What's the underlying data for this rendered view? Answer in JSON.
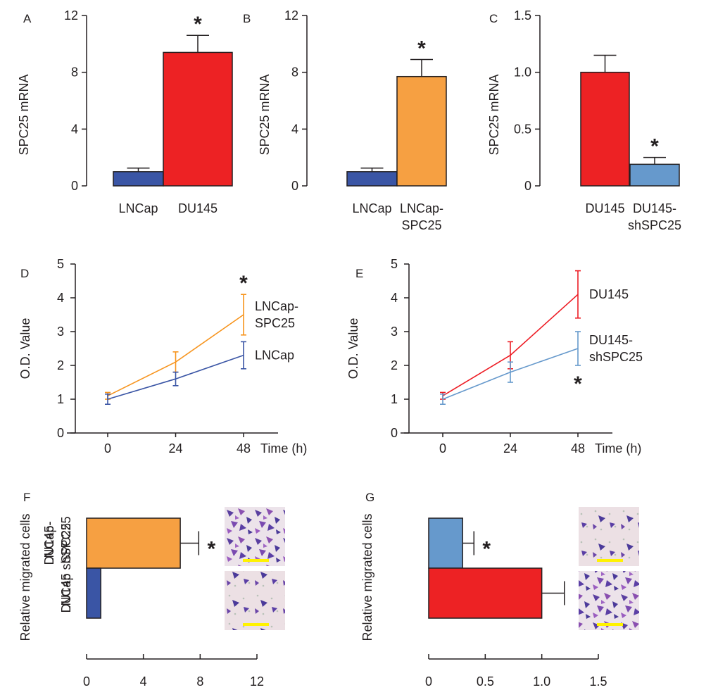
{
  "chart_data": [
    {
      "panel": "A",
      "type": "bar",
      "orientation": "vertical",
      "ylabel": "SPC25 mRNA",
      "ylim": [
        0,
        12
      ],
      "yticks": [
        "0",
        "4",
        "8",
        "12"
      ],
      "ytick_values": [
        0,
        4,
        8,
        12
      ],
      "categories": [
        [
          "LNCap"
        ],
        [
          "DU145"
        ]
      ],
      "values": [
        1.0,
        9.4
      ],
      "errors": [
        0.25,
        1.2
      ],
      "colors": [
        "#3a55a5",
        "#ed2224"
      ],
      "significance": [
        "",
        "*"
      ]
    },
    {
      "panel": "B",
      "type": "bar",
      "orientation": "vertical",
      "ylabel": "SPC25 mRNA",
      "ylim": [
        0,
        12
      ],
      "yticks": [
        "0",
        "4",
        "8",
        "12"
      ],
      "ytick_values": [
        0,
        4,
        8,
        12
      ],
      "categories": [
        [
          "LNCap"
        ],
        [
          "LNCap-",
          "SPC25"
        ]
      ],
      "values": [
        1.0,
        7.7
      ],
      "errors": [
        0.25,
        1.2
      ],
      "colors": [
        "#3a55a5",
        "#f6a042"
      ],
      "significance": [
        "",
        "*"
      ]
    },
    {
      "panel": "C",
      "type": "bar",
      "orientation": "vertical",
      "ylabel": "SPC25 mRNA",
      "ylim": [
        0,
        1.5
      ],
      "yticks": [
        "0",
        "0.5",
        "1.0",
        "1.5"
      ],
      "ytick_values": [
        0,
        0.5,
        1.0,
        1.5
      ],
      "categories": [
        [
          "DU145"
        ],
        [
          "DU145-",
          "shSPC25"
        ]
      ],
      "values": [
        1.0,
        0.19
      ],
      "errors": [
        0.15,
        0.06
      ],
      "colors": [
        "#ed2224",
        "#6699cc"
      ],
      "significance": [
        "",
        "*"
      ]
    },
    {
      "panel": "D",
      "type": "line",
      "ylabel": "O.D. Value",
      "xlabel": "Time (h)",
      "ylim": [
        0,
        5
      ],
      "yticks": [
        "0",
        "1",
        "2",
        "3",
        "4",
        "5"
      ],
      "ytick_values": [
        0,
        1,
        2,
        3,
        4,
        5
      ],
      "x": [
        0,
        24,
        48
      ],
      "xticks": [
        "0",
        "24",
        "48"
      ],
      "series": [
        {
          "name": [
            "LNCap-",
            "SPC25"
          ],
          "values": [
            1.1,
            2.1,
            3.5
          ],
          "errors": [
            0.1,
            0.3,
            0.6
          ],
          "color": "#f7941d"
        },
        {
          "name": [
            "LNCap"
          ],
          "values": [
            1.0,
            1.6,
            2.3
          ],
          "errors": [
            0.15,
            0.2,
            0.4
          ],
          "color": "#3a55a5"
        }
      ],
      "significance": {
        "label": "*",
        "at_x": 48,
        "position": "above"
      }
    },
    {
      "panel": "E",
      "type": "line",
      "ylabel": "O.D. Value",
      "xlabel": "Time (h)",
      "ylim": [
        0,
        5
      ],
      "yticks": [
        "0",
        "1",
        "2",
        "3",
        "4",
        "5"
      ],
      "ytick_values": [
        0,
        1,
        2,
        3,
        4,
        5
      ],
      "x": [
        0,
        24,
        48
      ],
      "xticks": [
        "0",
        "24",
        "48"
      ],
      "series": [
        {
          "name": [
            "DU145"
          ],
          "values": [
            1.1,
            2.3,
            4.1
          ],
          "errors": [
            0.1,
            0.4,
            0.7
          ],
          "color": "#ed1c24"
        },
        {
          "name": [
            "DU145-",
            "shSPC25"
          ],
          "values": [
            1.0,
            1.8,
            2.5
          ],
          "errors": [
            0.15,
            0.3,
            0.5
          ],
          "color": "#6699cc"
        }
      ],
      "significance": {
        "label": "*",
        "at_x": 48,
        "position": "below"
      }
    },
    {
      "panel": "F",
      "type": "bar",
      "orientation": "horizontal",
      "ylabel": "Relative migrated cells",
      "xlim": [
        0,
        12
      ],
      "xticks": [
        "0",
        "4",
        "8",
        "12"
      ],
      "xtick_values": [
        0,
        4,
        8,
        12
      ],
      "categories": [
        [
          "LNCap-",
          "SPC25"
        ],
        [
          "LNCap"
        ]
      ],
      "values": [
        6.6,
        1.0
      ],
      "errors": [
        1.3,
        0
      ],
      "colors": [
        "#f6a042",
        "#3a55a5"
      ],
      "significance": [
        "*",
        ""
      ],
      "micrographs": [
        {
          "group": "LNCap-SPC25",
          "density": "high",
          "scale_bar_color": "#fff200"
        },
        {
          "group": "LNCap",
          "density": "low",
          "scale_bar_color": "#fff200"
        }
      ]
    },
    {
      "panel": "G",
      "type": "bar",
      "orientation": "horizontal",
      "ylabel": "Relative migrated cells",
      "xlim": [
        0,
        1.5
      ],
      "xticks": [
        "0",
        "0.5",
        "1.0",
        "1.5"
      ],
      "xtick_values": [
        0,
        0.5,
        1.0,
        1.5
      ],
      "categories": [
        [
          "DU145-",
          "shSPC25"
        ],
        [
          "DU145"
        ]
      ],
      "values": [
        0.3,
        1.0
      ],
      "errors": [
        0.1,
        0.2
      ],
      "colors": [
        "#6699cc",
        "#ed2224"
      ],
      "significance": [
        "*",
        ""
      ],
      "micrographs": [
        {
          "group": "DU145-shSPC25",
          "density": "low",
          "scale_bar_color": "#fff200"
        },
        {
          "group": "DU145",
          "density": "high",
          "scale_bar_color": "#fff200"
        }
      ]
    }
  ]
}
